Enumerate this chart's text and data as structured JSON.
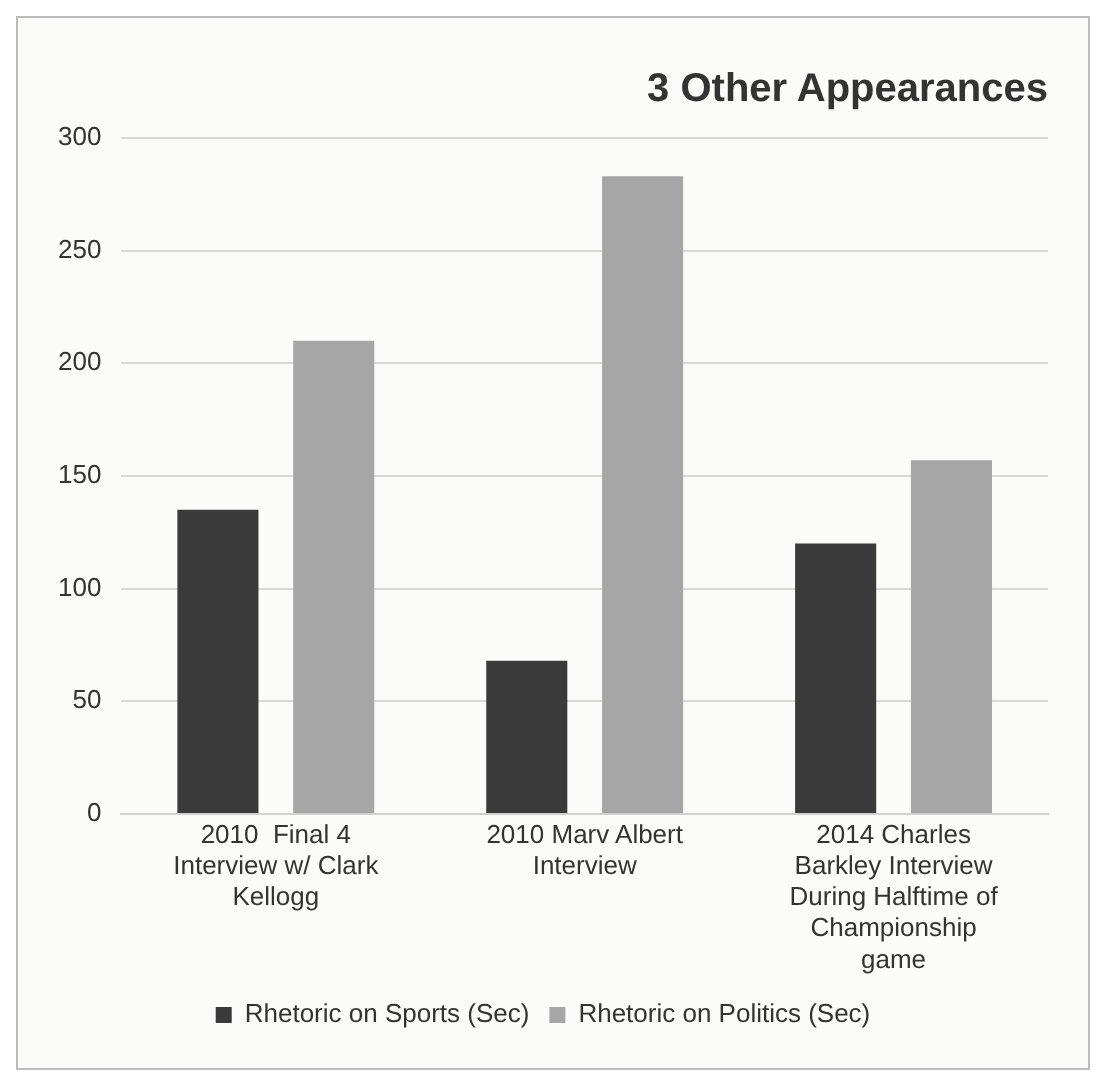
{
  "chart_data": {
    "type": "bar",
    "title": "3 Other Appearances",
    "categories": [
      "2010  Final 4 Interview w/ Clark Kellogg",
      "2010 Marv Albert Interview",
      "2014 Charles Barkley Interview During Halftime of Championship game"
    ],
    "series": [
      {
        "name": "Rhetoric on Sports (Sec)",
        "color": "#3a3a3a",
        "values": [
          135,
          68,
          120
        ]
      },
      {
        "name": "Rhetoric on Politics (Sec)",
        "color": "#a6a6a6",
        "values": [
          210,
          283,
          157
        ]
      }
    ],
    "ylim": [
      0,
      300
    ],
    "yticks": [
      0,
      50,
      100,
      150,
      200,
      250,
      300
    ],
    "grid": "y",
    "legend": "bottom"
  }
}
